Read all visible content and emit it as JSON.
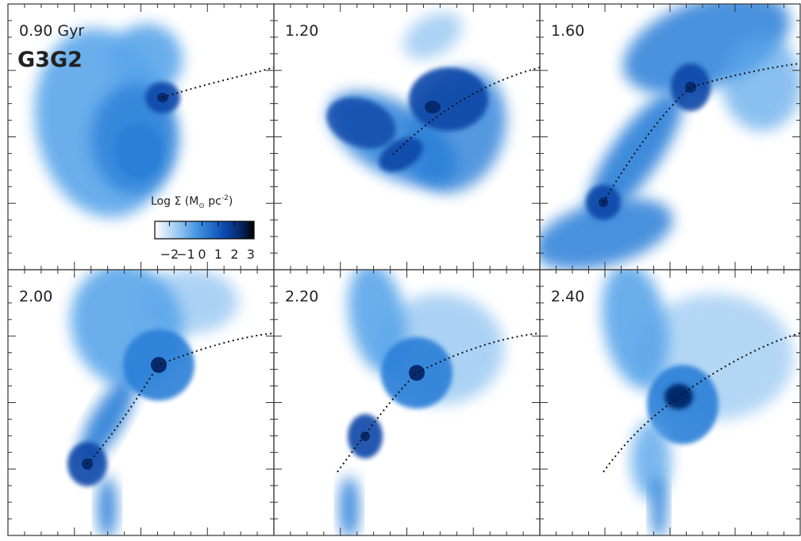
{
  "figure": {
    "label": "G3G2",
    "panels": [
      {
        "time": "0.90 Gyr"
      },
      {
        "time": "1.20"
      },
      {
        "time": "1.60"
      },
      {
        "time": "2.00"
      },
      {
        "time": "2.20"
      },
      {
        "time": "2.40"
      }
    ],
    "colorbar": {
      "label": "Log Σ (M",
      "label_sub": "⊙",
      "label_unit": " pc",
      "label_sup": "-2",
      "label_close": ")",
      "clim": [
        -2.9,
        3.2
      ],
      "ticks": [
        {
          "value": -2,
          "label": "−2"
        },
        {
          "value": -1,
          "label": "−1"
        },
        0,
        1,
        2,
        3
      ]
    }
  }
}
